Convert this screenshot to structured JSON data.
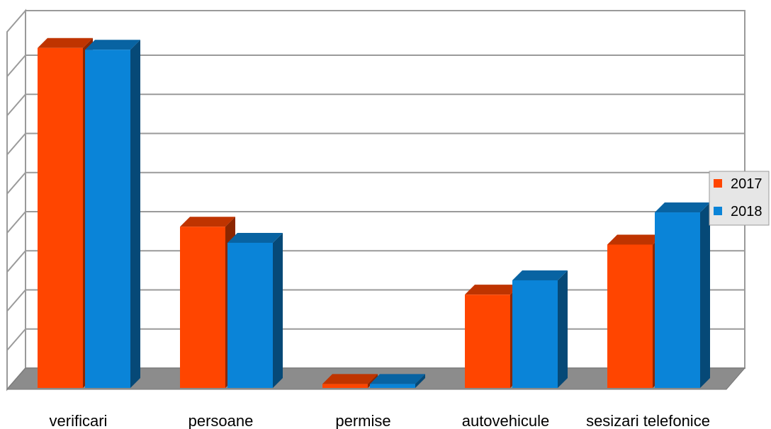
{
  "chart_data": {
    "type": "bar",
    "categories": [
      "verificari",
      "persoane",
      "permise",
      "autovehicule",
      "sesizari telefonice"
    ],
    "series": [
      {
        "name": "2017",
        "color": "#ff4500",
        "values": [
          95.5,
          45.5,
          1.5,
          26.5,
          40.5
        ]
      },
      {
        "name": "2018",
        "color": "#0a84d8",
        "values": [
          95.0,
          41.0,
          1.5,
          30.5,
          49.5
        ]
      }
    ],
    "ylim": [
      0,
      100
    ],
    "grid": true,
    "legend": "right",
    "title": "",
    "xlabel": "",
    "ylabel": ""
  }
}
